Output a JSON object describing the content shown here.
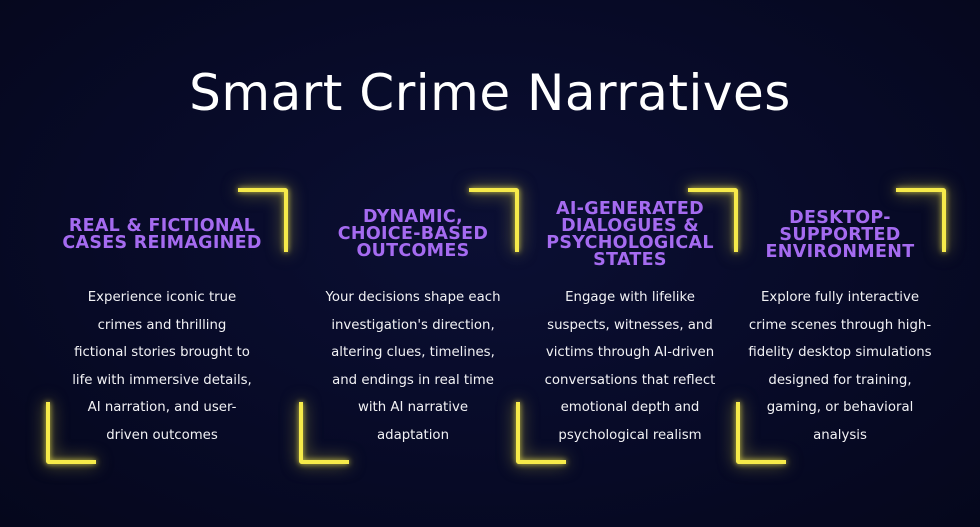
{
  "title": "Smart Crime Narratives",
  "colors": {
    "background": "#070a26",
    "title": "#ffffff",
    "heading_accent": "#a56bf0",
    "bracket_glow": "#f6ea4a",
    "body_text": "#f2f2f5"
  },
  "cards": [
    {
      "heading": "REAL & FICTIONAL\nCASES REIMAGINED",
      "body": "Experience iconic true\ncrimes and thrilling\nfictional stories brought to\nlife with immersive details,\nAI narration, and user-\ndriven outcomes"
    },
    {
      "heading": "DYNAMIC,\nCHOICE-BASED\nOUTCOMES",
      "body": "Your decisions shape each\ninvestigation's direction,\naltering clues, timelines,\nand endings in real time\nwith AI narrative\nadaptation"
    },
    {
      "heading": "AI-GENERATED\nDIALOGUES &\nPSYCHOLOGICAL\nSTATES",
      "body": "Engage with lifelike\nsuspects, witnesses, and\nvictims through AI-driven\nconversations that reflect\nemotional depth and\npsychological realism"
    },
    {
      "heading": "DESKTOP-\nSUPPORTED\nENVIRONMENT",
      "body": "Explore fully interactive\ncrime scenes through high-\nfidelity desktop simulations\ndesigned for training,\ngaming, or behavioral\nanalysis"
    }
  ]
}
